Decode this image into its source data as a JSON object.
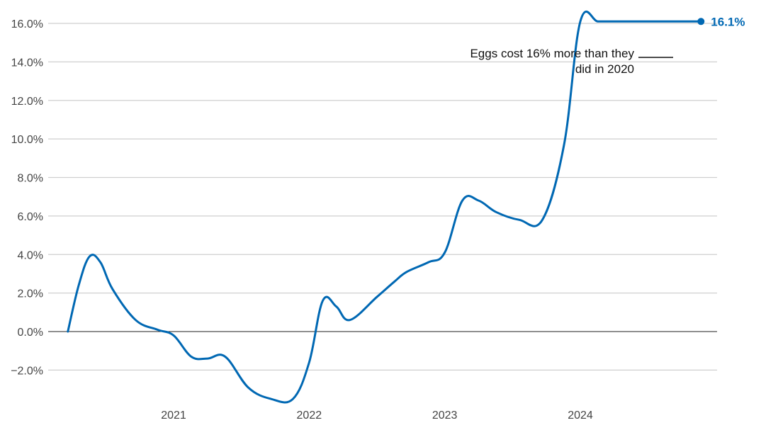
{
  "chart_data": {
    "type": "line",
    "title": "",
    "xlabel": "",
    "ylabel": "",
    "ylim": [
      -3.6,
      16.1
    ],
    "grid": true,
    "colors": {
      "line": "#0068b3",
      "grid": "#cfcfcf",
      "zero": "#222222"
    },
    "y_ticks": [
      {
        "value": 16,
        "label": "16.0%"
      },
      {
        "value": 14,
        "label": "14.0%"
      },
      {
        "value": 12,
        "label": "12.0%"
      },
      {
        "value": 10,
        "label": "10.0%"
      },
      {
        "value": 8,
        "label": "8.0%"
      },
      {
        "value": 6,
        "label": "6.0%"
      },
      {
        "value": 4,
        "label": "4.0%"
      },
      {
        "value": 2,
        "label": "2.0%"
      },
      {
        "value": 0,
        "label": "0.0%"
      },
      {
        "value": -2,
        "label": "−2.0%"
      }
    ],
    "x_ticks": [
      {
        "value": 2021.0,
        "label": "2021"
      },
      {
        "value": 2022.0,
        "label": "2022"
      },
      {
        "value": 2023.0,
        "label": "2023"
      },
      {
        "value": 2024.0,
        "label": "2024"
      }
    ],
    "xlim": [
      2020.2,
      2025.0
    ],
    "series": [
      {
        "x": [
          2020.22,
          2020.3,
          2020.38,
          2020.46,
          2020.55,
          2020.72,
          2020.88,
          2021.0,
          2021.13,
          2021.25,
          2021.38,
          2021.55,
          2021.72,
          2021.88,
          2022.0,
          2022.1,
          2022.2,
          2022.3,
          2022.5,
          2022.63,
          2022.72,
          2022.88,
          2023.0,
          2023.13,
          2023.25,
          2023.38,
          2023.55,
          2023.72,
          2023.88,
          2024.0,
          2024.13,
          2024.25,
          2024.38,
          2024.5,
          2024.55,
          2024.72,
          2024.89
        ],
        "y": [
          0.0,
          2.4,
          3.9,
          3.6,
          2.2,
          0.6,
          0.1,
          -0.2,
          -1.3,
          -1.4,
          -1.3,
          -2.9,
          -3.5,
          -3.5,
          -1.6,
          1.6,
          1.3,
          0.6,
          1.8,
          2.6,
          3.1,
          3.6,
          4.1,
          6.8,
          6.8,
          6.2,
          5.8,
          5.8,
          9.7,
          16.1,
          16.1,
          16.1,
          16.1,
          16.1,
          16.1,
          16.1,
          16.1
        ]
      }
    ],
    "end_point": {
      "x": 2024.89,
      "y": 16.1,
      "label": "16.1%"
    },
    "annotation": {
      "lines": [
        "Eggs cost 16% more than they",
        "did in 2020"
      ]
    }
  }
}
